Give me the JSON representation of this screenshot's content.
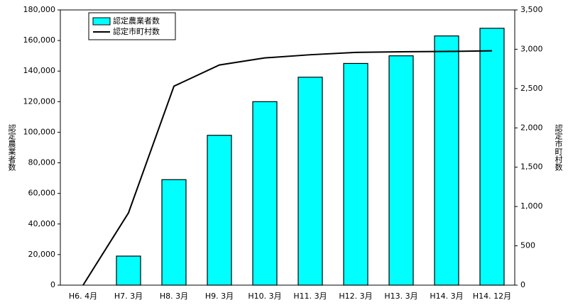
{
  "chart_data": {
    "type": "bar",
    "categories": [
      "H6. 4月",
      "H7. 3月",
      "H8. 3月",
      "H9. 3月",
      "H10. 3月",
      "H11. 3月",
      "H12. 3月",
      "H13. 3月",
      "H14. 3月",
      "H14. 12月"
    ],
    "series": [
      {
        "name": "認定農業者数",
        "type": "bar",
        "color": "#00ffff",
        "values": [
          0,
          19000,
          69000,
          98000,
          120000,
          136000,
          145000,
          150000,
          163000,
          168000
        ]
      },
      {
        "name": "認定市町村数",
        "type": "line",
        "axis": "y2",
        "color": "#000000",
        "values": [
          0,
          920,
          2530,
          2800,
          2890,
          2930,
          2960,
          2968,
          2972,
          2980
        ]
      }
    ],
    "ylabel": "認定農業者数",
    "y2label": "認定市町村数",
    "ylim": [
      0,
      180000
    ],
    "yticks": [
      0,
      {
        "value": 20000,
        "label": "20,000"
      },
      {
        "value": 40000,
        "label": "40,000"
      },
      {
        "value": 60000,
        "label": "60,000"
      },
      {
        "value": 80000,
        "label": "80,000"
      },
      {
        "value": 100000,
        "label": "100,000"
      },
      {
        "value": 120000,
        "label": "120,000"
      },
      {
        "value": 140000,
        "label": "140,000"
      },
      {
        "value": 160000,
        "label": "160,000"
      },
      {
        "value": 180000,
        "label": "180,000"
      }
    ],
    "y2lim": [
      0,
      3500
    ],
    "y2ticks": [
      0,
      500,
      {
        "value": 1000,
        "label": "1,000"
      },
      {
        "value": 1500,
        "label": "1,500"
      },
      {
        "value": 2000,
        "label": "2,000"
      },
      {
        "value": 2500,
        "label": "2,500"
      },
      {
        "value": 3000,
        "label": "3,000"
      },
      {
        "value": 3500,
        "label": "3,500"
      }
    ],
    "grid": false,
    "legend": "top-left"
  }
}
